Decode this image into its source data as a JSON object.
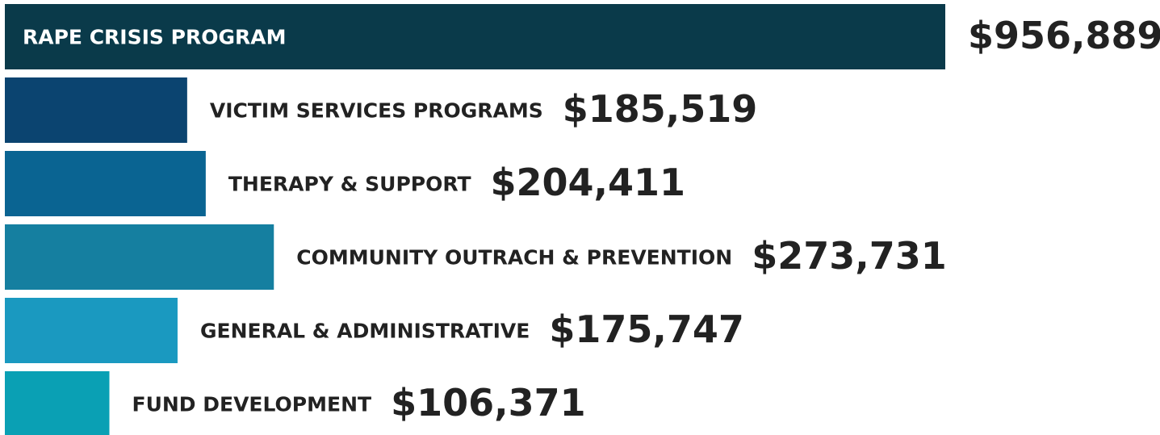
{
  "chart_data": {
    "type": "bar",
    "orientation": "horizontal",
    "categories": [
      "RAPE CRISIS PROGRAM",
      "VICTIM SERVICES PROGRAMS",
      "THERAPY & SUPPORT",
      "COMMUNITY OUTRACH & PREVENTION",
      "GENERAL & ADMINISTRATIVE",
      "FUND DEVELOPMENT"
    ],
    "values": [
      956889,
      185519,
      204411,
      273731,
      175747,
      106371
    ],
    "value_labels": [
      "$956,889",
      "$185,519",
      "$204,411",
      "$273,731",
      "$175,747",
      "$106,371"
    ],
    "colors": [
      "#0a3a4a",
      "#0b4470",
      "#0a6492",
      "#157fa0",
      "#1a99c0",
      "#0aa0b4"
    ]
  }
}
